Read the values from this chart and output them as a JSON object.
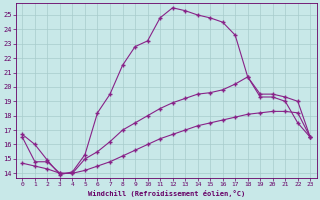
{
  "xlabel": "Windchill (Refroidissement éolien,°C)",
  "bg_color": "#c8e8e8",
  "grid_color": "#a8cccc",
  "line_color": "#882288",
  "x_ticks": [
    0,
    1,
    2,
    3,
    4,
    5,
    6,
    7,
    8,
    9,
    10,
    11,
    12,
    13,
    14,
    15,
    16,
    17,
    18,
    19,
    20,
    21,
    22,
    23
  ],
  "y_ticks": [
    14,
    15,
    16,
    17,
    18,
    19,
    20,
    21,
    22,
    23,
    24,
    25
  ],
  "ylim": [
    13.7,
    25.8
  ],
  "xlim": [
    -0.5,
    23.5
  ],
  "curve1_x": [
    0,
    1,
    2,
    3,
    4,
    5,
    6,
    7,
    8,
    9,
    10,
    11,
    12,
    13,
    14,
    15,
    16,
    17,
    18,
    19,
    20,
    21,
    22,
    23
  ],
  "curve1_y": [
    16.7,
    16.0,
    14.9,
    13.9,
    14.1,
    15.3,
    18.2,
    19.5,
    21.5,
    22.8,
    23.2,
    24.8,
    25.5,
    25.3,
    25.0,
    24.8,
    24.5,
    23.6,
    20.7,
    19.3,
    19.3,
    19.0,
    17.5,
    16.5
  ],
  "curve2_x": [
    0,
    1,
    2,
    3,
    4,
    5,
    6,
    7,
    8,
    9,
    10,
    11,
    12,
    13,
    14,
    15,
    16,
    17,
    18,
    19,
    20,
    21,
    22,
    23
  ],
  "curve2_y": [
    16.5,
    14.8,
    14.8,
    14.0,
    14.0,
    15.0,
    15.5,
    16.2,
    17.0,
    17.5,
    18.0,
    18.5,
    18.9,
    19.2,
    19.5,
    19.6,
    19.8,
    20.2,
    20.7,
    19.5,
    19.5,
    19.3,
    19.0,
    16.5
  ],
  "curve3_x": [
    0,
    1,
    2,
    3,
    4,
    5,
    6,
    7,
    8,
    9,
    10,
    11,
    12,
    13,
    14,
    15,
    16,
    17,
    18,
    19,
    20,
    21,
    22,
    23
  ],
  "curve3_y": [
    14.7,
    14.5,
    14.3,
    14.0,
    14.0,
    14.2,
    14.5,
    14.8,
    15.2,
    15.6,
    16.0,
    16.4,
    16.7,
    17.0,
    17.3,
    17.5,
    17.7,
    17.9,
    18.1,
    18.2,
    18.3,
    18.3,
    18.2,
    16.5
  ],
  "xlabel_color": "#660066",
  "tick_color": "#660066",
  "marker": "+",
  "markersize": 3,
  "linewidth": 0.8
}
